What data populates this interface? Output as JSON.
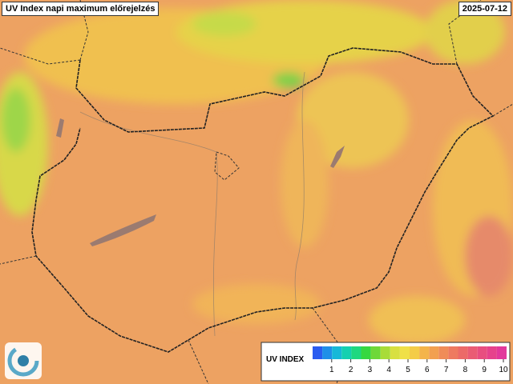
{
  "header": {
    "title": "UV Index napi maximum előrejelzés",
    "date": "2025-07-12"
  },
  "legend": {
    "title": "UV INDEX",
    "ticks": [
      1,
      2,
      3,
      4,
      5,
      6,
      7,
      8,
      9,
      10
    ]
  }
}
